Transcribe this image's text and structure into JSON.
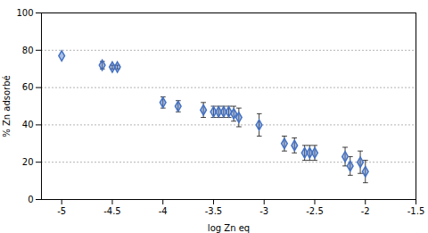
{
  "chart_data": {
    "type": "scatter",
    "x": [
      -5.0,
      -4.6,
      -4.5,
      -4.45,
      -4.0,
      -3.85,
      -3.6,
      -3.5,
      -3.45,
      -3.4,
      -3.35,
      -3.3,
      -3.25,
      -3.05,
      -2.8,
      -2.7,
      -2.6,
      -2.55,
      -2.5,
      -2.2,
      -2.15,
      -2.05,
      -2.0
    ],
    "values": [
      77,
      72,
      71,
      71,
      52,
      50,
      48,
      47,
      47,
      47,
      47,
      46,
      44,
      40,
      30,
      29,
      25,
      25,
      25,
      23,
      18,
      20,
      15
    ],
    "yerr": [
      0,
      2,
      1,
      1,
      3,
      3,
      4,
      3,
      3,
      3,
      3,
      4,
      5,
      6,
      4,
      4,
      4,
      4,
      4,
      5,
      5,
      6,
      6
    ],
    "xlabel": "log Zn eq",
    "ylabel": "% Zn adsorbé",
    "xlim": [
      -5.2,
      -1.5
    ],
    "ylim": [
      0,
      100
    ],
    "xticks": [
      -5,
      -4.5,
      -4,
      -3.5,
      -3,
      -2.5,
      -2,
      -1.5
    ],
    "yticks": [
      0,
      20,
      40,
      60,
      80,
      100
    ],
    "grid": true,
    "marker": "diamond",
    "color": "#4472C4"
  }
}
